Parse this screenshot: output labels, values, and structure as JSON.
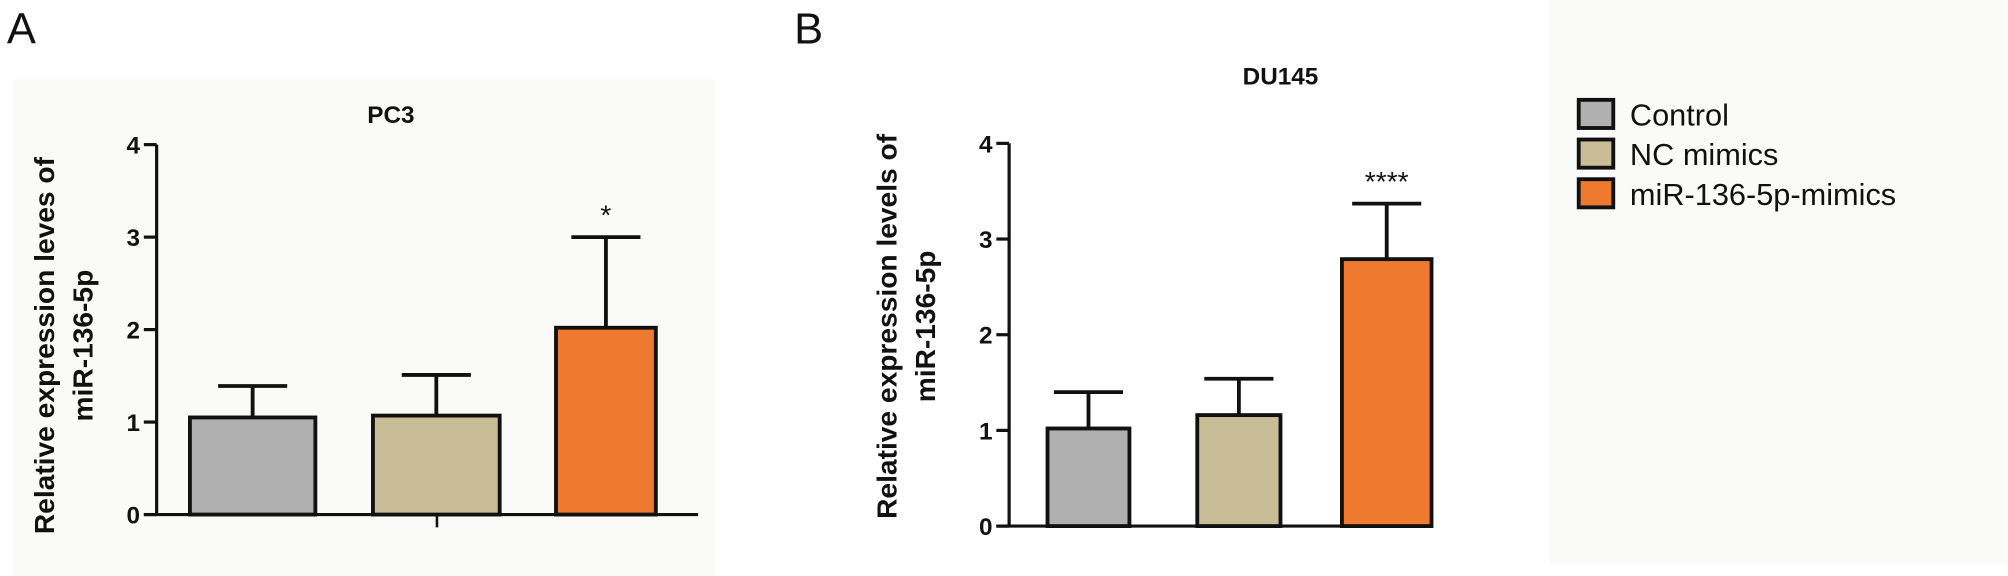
{
  "panels": [
    {
      "letter": "A",
      "title": "PC3",
      "ylabel_line1": "Relative expression leves of",
      "ylabel_line2": "miR-136-5p"
    },
    {
      "letter": "B",
      "title": "DU145",
      "ylabel_line1": "Relative  expression levels of",
      "ylabel_line2": "miR-136-5p"
    }
  ],
  "legend": [
    {
      "label": "Control",
      "color": "#b0b0b0"
    },
    {
      "label": "NC mimics",
      "color": "#c8bd96"
    },
    {
      "label": "miR-136-5p-mimics",
      "color": "#ef7a2f"
    }
  ],
  "chart_data": [
    {
      "type": "bar",
      "title": "PC3",
      "ylabel": "Relative expression leves of miR-136-5p",
      "xlabel": "",
      "categories": [
        "Control",
        "NC mimics",
        "miR-136-5p-mimics"
      ],
      "values": [
        1.05,
        1.07,
        2.02
      ],
      "error_upper": [
        1.39,
        1.51,
        3.0
      ],
      "significance": [
        "",
        "",
        "*"
      ],
      "ylim": [
        0,
        4
      ],
      "yticks": [
        "0",
        "1",
        "2",
        "3",
        "4"
      ],
      "colors": [
        "#b0b0b0",
        "#c8bd96",
        "#ef7a2f"
      ]
    },
    {
      "type": "bar",
      "title": "DU145",
      "ylabel": "Relative expression levels of miR-136-5p",
      "xlabel": "",
      "categories": [
        "Control",
        "NC mimics",
        "miR-136-5p-mimics"
      ],
      "values": [
        1.02,
        1.16,
        2.79
      ],
      "error_upper": [
        1.4,
        1.54,
        3.37
      ],
      "significance": [
        "",
        "",
        "****"
      ],
      "ylim": [
        0,
        4
      ],
      "yticks": [
        "0",
        "1",
        "2",
        "3",
        "4"
      ],
      "colors": [
        "#b0b0b0",
        "#c8bd96",
        "#ef7a2f"
      ]
    }
  ]
}
